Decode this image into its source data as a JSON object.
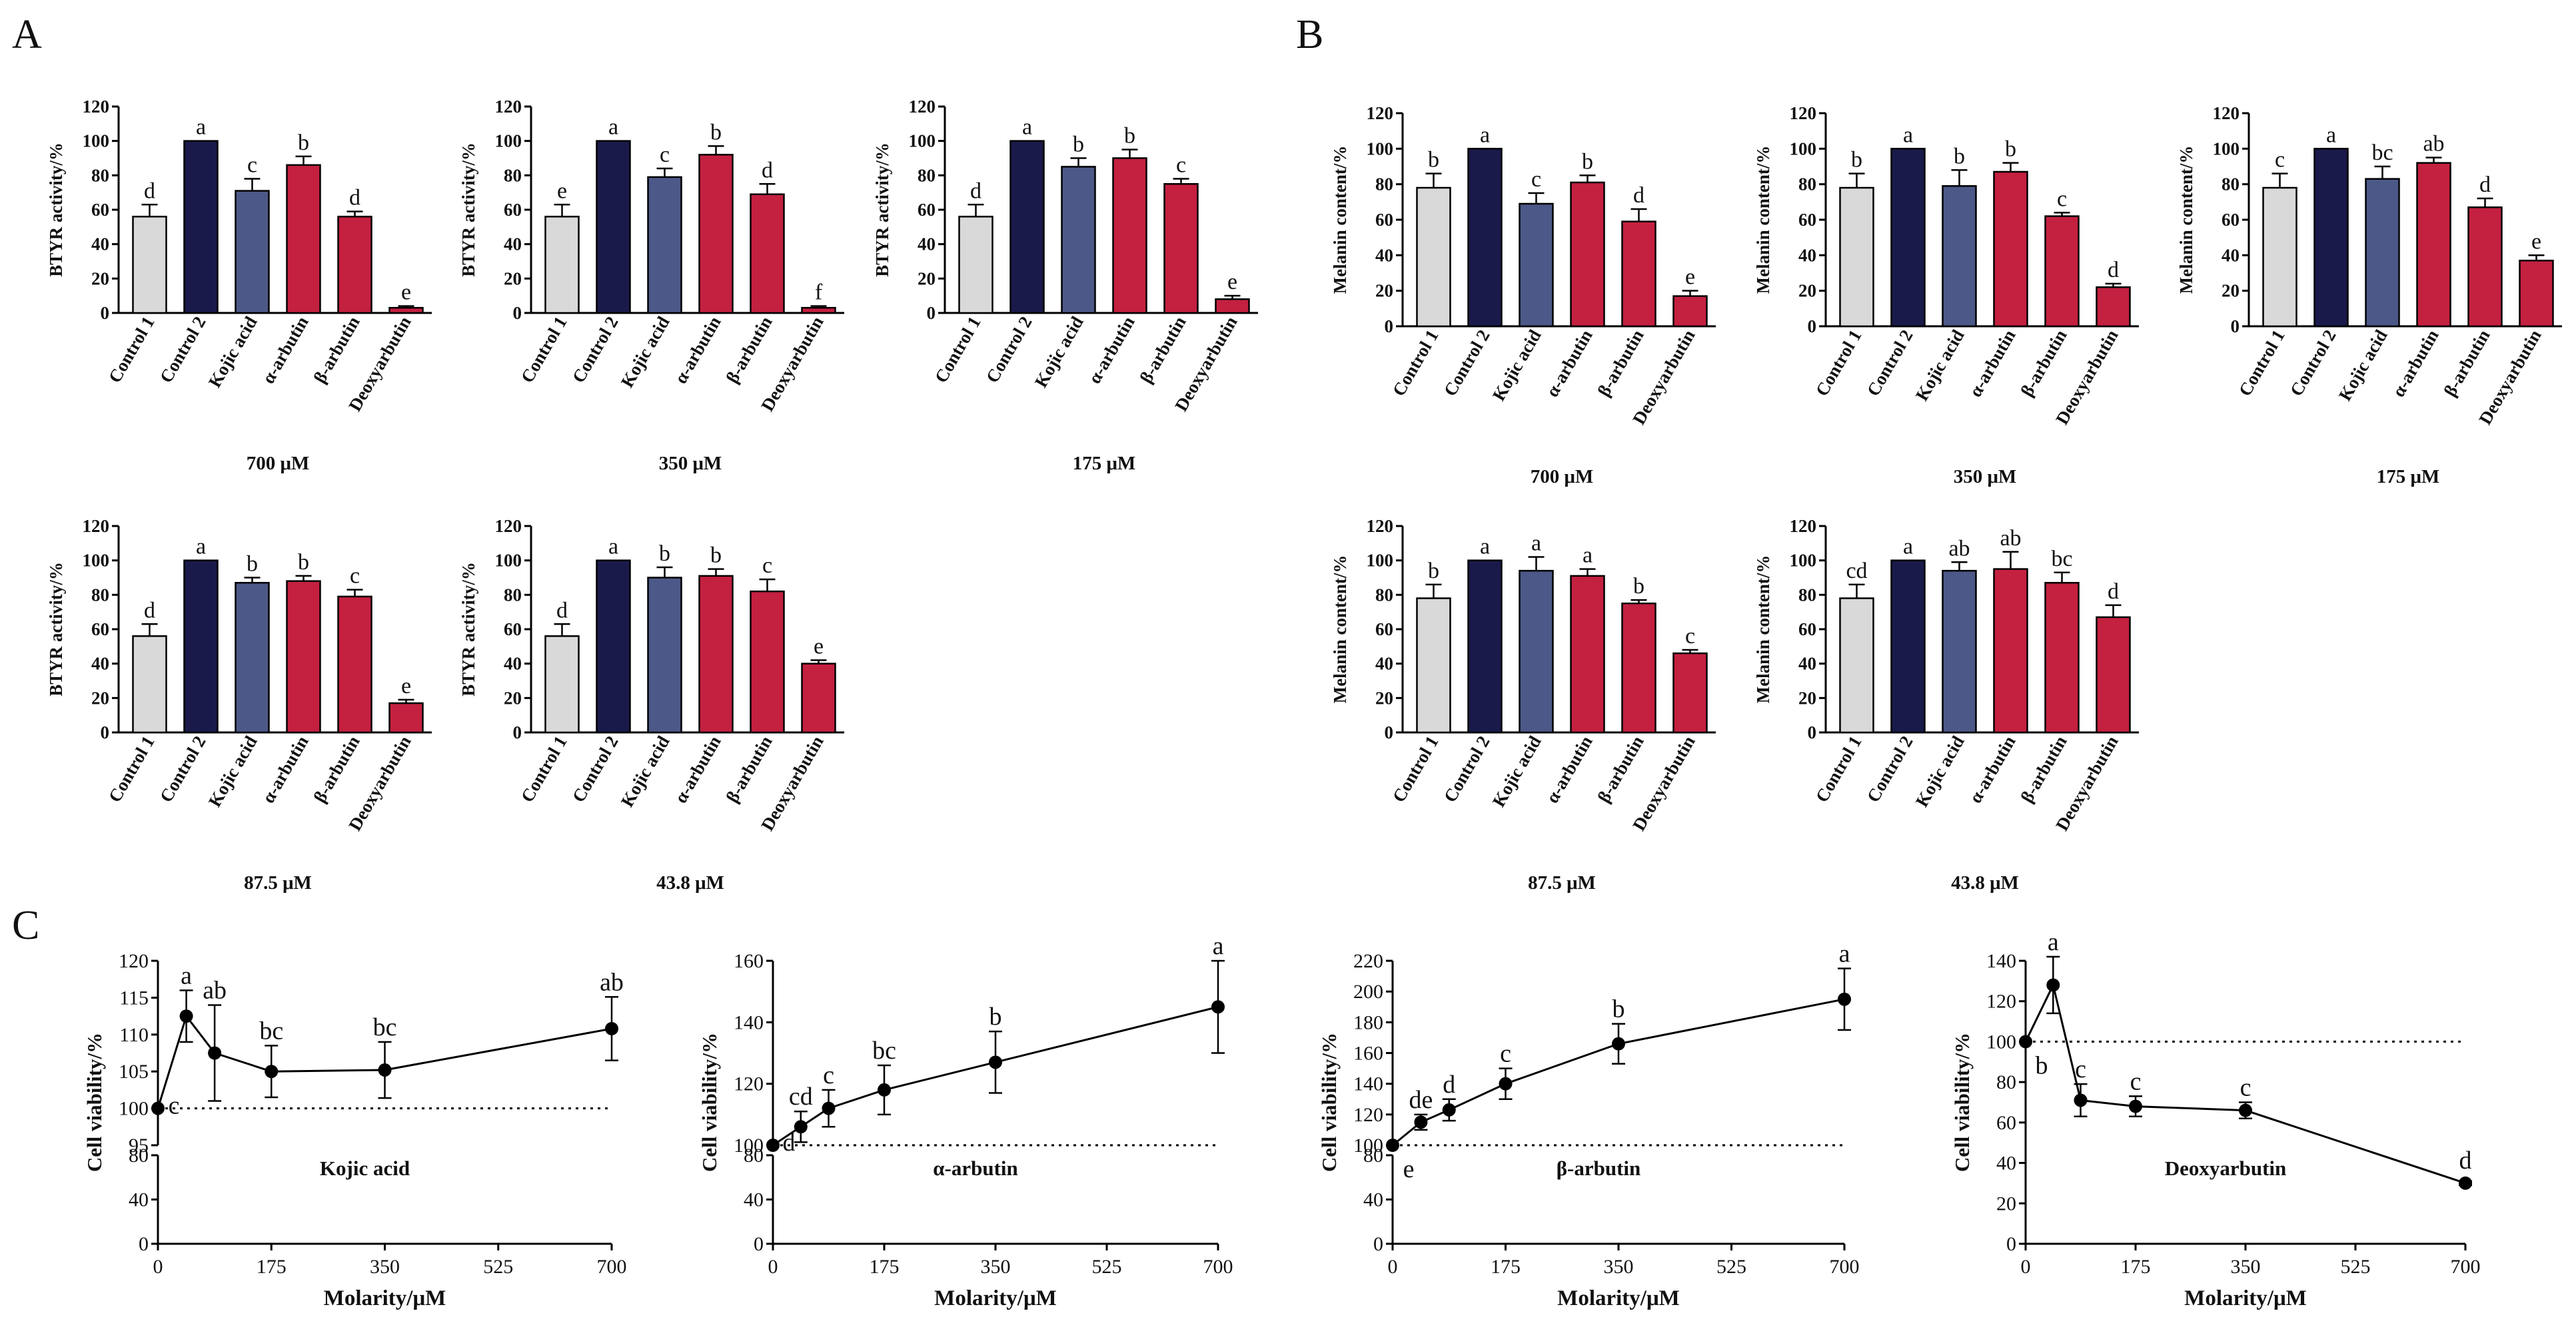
{
  "figure": {
    "panel_labels": [
      "A",
      "B",
      "C"
    ]
  },
  "colors": {
    "control1": "#d9d9d9",
    "control2": "#191a4a",
    "kojic": "#4c5887",
    "alpha": "#c42040",
    "beta": "#c42040",
    "deoxy": "#c42040",
    "line": "#000000"
  },
  "chart_data": [
    {
      "id": "A-700",
      "panel": "A",
      "type": "bar",
      "title": "700 μM",
      "ylabel": "BTYR  activity/%",
      "ylim": [
        0,
        120
      ],
      "yticks": [
        0,
        20,
        40,
        60,
        80,
        100,
        120
      ],
      "categories": [
        "Control 1",
        "Control 2",
        "Kojic acid",
        "α-arbutin",
        "β-arbutin",
        "Deoxyarbutin"
      ],
      "values": [
        56,
        100,
        71,
        86,
        56,
        3
      ],
      "errors": [
        7,
        0,
        7,
        5,
        3,
        1
      ],
      "letters": [
        "d",
        "a",
        "c",
        "b",
        "d",
        "e"
      ]
    },
    {
      "id": "A-350",
      "panel": "A",
      "type": "bar",
      "title": "350 μM",
      "ylabel": "BTYR  activity/%",
      "ylim": [
        0,
        120
      ],
      "yticks": [
        0,
        20,
        40,
        60,
        80,
        100,
        120
      ],
      "categories": [
        "Control 1",
        "Control 2",
        "Kojic acid",
        "α-arbutin",
        "β-arbutin",
        "Deoxyarbutin"
      ],
      "values": [
        56,
        100,
        79,
        92,
        69,
        3
      ],
      "errors": [
        7,
        0,
        5,
        5,
        6,
        1
      ],
      "letters": [
        "e",
        "a",
        "c",
        "b",
        "d",
        "f"
      ]
    },
    {
      "id": "A-175",
      "panel": "A",
      "type": "bar",
      "title": "175 μM",
      "ylabel": "BTYR  activity/%",
      "ylim": [
        0,
        120
      ],
      "yticks": [
        0,
        20,
        40,
        60,
        80,
        100,
        120
      ],
      "categories": [
        "Control 1",
        "Control 2",
        "Kojic acid",
        "α-arbutin",
        "β-arbutin",
        "Deoxyarbutin"
      ],
      "values": [
        56,
        100,
        85,
        90,
        75,
        8
      ],
      "errors": [
        7,
        0,
        5,
        5,
        3,
        2
      ],
      "letters": [
        "d",
        "a",
        "b",
        "b",
        "c",
        "e"
      ]
    },
    {
      "id": "A-87.5",
      "panel": "A",
      "type": "bar",
      "title": "87.5 μM",
      "ylabel": "BTYR  activity/%",
      "ylim": [
        0,
        120
      ],
      "yticks": [
        0,
        20,
        40,
        60,
        80,
        100,
        120
      ],
      "categories": [
        "Control 1",
        "Control 2",
        "Kojic acid",
        "α-arbutin",
        "β-arbutin",
        "Deoxyarbutin"
      ],
      "values": [
        56,
        100,
        87,
        88,
        79,
        17
      ],
      "errors": [
        7,
        0,
        3,
        3,
        4,
        2
      ],
      "letters": [
        "d",
        "a",
        "b",
        "b",
        "c",
        "e"
      ]
    },
    {
      "id": "A-43.8",
      "panel": "A",
      "type": "bar",
      "title": "43.8 μM",
      "ylabel": "BTYR  activity/%",
      "ylim": [
        0,
        120
      ],
      "yticks": [
        0,
        20,
        40,
        60,
        80,
        100,
        120
      ],
      "categories": [
        "Control 1",
        "Control 2",
        "Kojic acid",
        "α-arbutin",
        "β-arbutin",
        "Deoxyarbutin"
      ],
      "values": [
        56,
        100,
        90,
        91,
        82,
        40
      ],
      "errors": [
        7,
        0,
        6,
        4,
        7,
        2
      ],
      "letters": [
        "d",
        "a",
        "b",
        "b",
        "c",
        "e"
      ]
    },
    {
      "id": "B-700",
      "panel": "B",
      "type": "bar",
      "title": "700 μM",
      "ylabel": "Melanin content/%",
      "ylim": [
        0,
        120
      ],
      "yticks": [
        0,
        20,
        40,
        60,
        80,
        100,
        120
      ],
      "categories": [
        "Control 1",
        "Control 2",
        "Kojic acid",
        "α-arbutin",
        "β-arbutin",
        "Deoxyarbutin"
      ],
      "values": [
        78,
        100,
        69,
        81,
        59,
        17
      ],
      "errors": [
        8,
        0,
        6,
        4,
        7,
        3
      ],
      "letters": [
        "b",
        "a",
        "c",
        "b",
        "d",
        "e"
      ]
    },
    {
      "id": "B-350",
      "panel": "B",
      "type": "bar",
      "title": "350 μM",
      "ylabel": "Melanin content/%",
      "ylim": [
        0,
        120
      ],
      "yticks": [
        0,
        20,
        40,
        60,
        80,
        100,
        120
      ],
      "categories": [
        "Control 1",
        "Control 2",
        "Kojic acid",
        "α-arbutin",
        "β-arbutin",
        "Deoxyarbutin"
      ],
      "values": [
        78,
        100,
        79,
        87,
        62,
        22
      ],
      "errors": [
        8,
        0,
        9,
        5,
        2,
        2
      ],
      "letters": [
        "b",
        "a",
        "b",
        "b",
        "c",
        "d"
      ]
    },
    {
      "id": "B-175",
      "panel": "B",
      "type": "bar",
      "title": "175 μM",
      "ylabel": "Melanin content/%",
      "ylim": [
        0,
        120
      ],
      "yticks": [
        0,
        20,
        40,
        60,
        80,
        100,
        120
      ],
      "categories": [
        "Control 1",
        "Control 2",
        "Kojic acid",
        "α-arbutin",
        "β-arbutin",
        "Deoxyarbutin"
      ],
      "values": [
        78,
        100,
        83,
        92,
        67,
        37
      ],
      "errors": [
        8,
        0,
        7,
        3,
        5,
        3
      ],
      "letters": [
        "c",
        "a",
        "bc",
        "ab",
        "d",
        "e"
      ]
    },
    {
      "id": "B-87.5",
      "panel": "B",
      "type": "bar",
      "title": "87.5 μM",
      "ylabel": "Melanin content/%",
      "ylim": [
        0,
        120
      ],
      "yticks": [
        0,
        20,
        40,
        60,
        80,
        100,
        120
      ],
      "categories": [
        "Control 1",
        "Control 2",
        "Kojic acid",
        "α-arbutin",
        "β-arbutin",
        "Deoxyarbutin"
      ],
      "values": [
        78,
        100,
        94,
        91,
        75,
        46
      ],
      "errors": [
        8,
        0,
        8,
        4,
        2,
        2
      ],
      "letters": [
        "b",
        "a",
        "a",
        "a",
        "b",
        "c"
      ]
    },
    {
      "id": "B-43.8",
      "panel": "B",
      "type": "bar",
      "title": "43.8 μM",
      "ylabel": "Melanin content/%",
      "ylim": [
        0,
        120
      ],
      "yticks": [
        0,
        20,
        40,
        60,
        80,
        100,
        120
      ],
      "categories": [
        "Control 1",
        "Control 2",
        "Kojic acid",
        "α-arbutin",
        "β-arbutin",
        "Deoxyarbutin"
      ],
      "values": [
        78,
        100,
        94,
        95,
        87,
        67
      ],
      "errors": [
        8,
        0,
        5,
        10,
        6,
        7
      ],
      "letters": [
        "cd",
        "a",
        "ab",
        "ab",
        "bc",
        "d"
      ]
    },
    {
      "id": "C-kojic",
      "panel": "C",
      "type": "line",
      "broken_axis": true,
      "label": "Kojic acid",
      "xlabel": "Molarity/μM",
      "ylabel": "Cell viability/%",
      "xlim": [
        0,
        700
      ],
      "xticks": [
        0,
        175,
        350,
        525,
        700
      ],
      "ylim_lower": [
        0,
        80
      ],
      "yticks_lower": [
        0,
        40,
        80
      ],
      "ylim_upper": [
        95,
        120
      ],
      "yticks_upper": [
        95,
        100,
        105,
        110,
        115,
        120
      ],
      "baseline": 100,
      "x": [
        0,
        43.8,
        87.5,
        175,
        350,
        700
      ],
      "y": [
        100,
        112.5,
        107.5,
        105,
        105.2,
        110.8
      ],
      "errors": [
        0,
        3.5,
        6.5,
        3.5,
        3.8,
        4.3
      ],
      "letters": [
        "c",
        "a",
        "ab",
        "bc",
        "bc",
        "ab"
      ]
    },
    {
      "id": "C-alpha",
      "panel": "C",
      "type": "line",
      "broken_axis": true,
      "label": "α-arbutin",
      "xlabel": "Molarity/μM",
      "ylabel": "Cell viability/%",
      "xlim": [
        0,
        700
      ],
      "xticks": [
        0,
        175,
        350,
        525,
        700
      ],
      "ylim_lower": [
        0,
        80
      ],
      "yticks_lower": [
        0,
        40,
        80
      ],
      "ylim_upper": [
        100,
        160
      ],
      "yticks_upper": [
        100,
        120,
        140,
        160
      ],
      "baseline": 100,
      "x": [
        0,
        43.8,
        87.5,
        175,
        350,
        700
      ],
      "y": [
        100,
        106,
        112,
        118,
        127,
        145
      ],
      "errors": [
        0,
        5,
        6,
        8,
        10,
        15
      ],
      "letters": [
        "d",
        "cd",
        "c",
        "bc",
        "b",
        "a"
      ]
    },
    {
      "id": "C-beta",
      "panel": "C",
      "type": "line",
      "broken_axis": true,
      "label": "β-arbutin",
      "xlabel": "Molarity/μM",
      "ylabel": "Cell viability/%",
      "xlim": [
        0,
        700
      ],
      "xticks": [
        0,
        175,
        350,
        525,
        700
      ],
      "ylim_lower": [
        0,
        80
      ],
      "yticks_lower": [
        0,
        40,
        80
      ],
      "ylim_upper": [
        100,
        220
      ],
      "yticks_upper": [
        100,
        120,
        140,
        160,
        180,
        200,
        220
      ],
      "baseline": 100,
      "x": [
        0,
        43.8,
        87.5,
        175,
        350,
        700
      ],
      "y": [
        100,
        115,
        123,
        140,
        166,
        195
      ],
      "errors": [
        0,
        5,
        7,
        10,
        13,
        20
      ],
      "letters": [
        "e",
        "de",
        "d",
        "c",
        "b",
        "a"
      ]
    },
    {
      "id": "C-deoxy",
      "panel": "C",
      "type": "line",
      "broken_axis": false,
      "label": "Deoxyarbutin",
      "xlabel": "Molarity/μM",
      "ylabel": "Cell viability/%",
      "xlim": [
        0,
        700
      ],
      "xticks": [
        0,
        175,
        350,
        525,
        700
      ],
      "ylim": [
        0,
        140
      ],
      "yticks": [
        0,
        20,
        40,
        60,
        80,
        100,
        120,
        140
      ],
      "baseline": 100,
      "x": [
        0,
        43.8,
        87.5,
        175,
        350,
        700
      ],
      "y": [
        100,
        128,
        71,
        68,
        66,
        30
      ],
      "errors": [
        0,
        14,
        8,
        5,
        4,
        1
      ],
      "letters": [
        "b",
        "a",
        "c",
        "c",
        "c",
        "d"
      ]
    }
  ]
}
